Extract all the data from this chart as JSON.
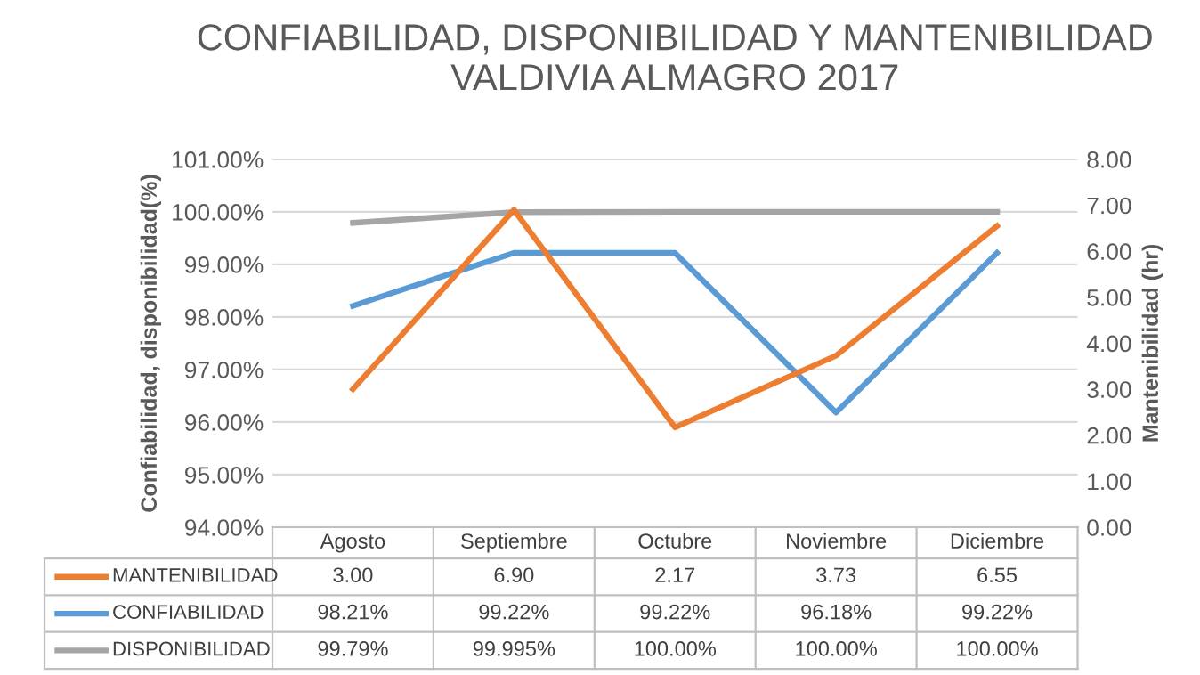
{
  "chart_data": {
    "type": "line",
    "title": "CONFIABILIDAD, DISPONIBILIDAD Y MANTENIBILIDAD\nVALDIVIA ALMAGRO 2017",
    "ylabel": "Confiabilidad, disponibilidad(%)",
    "y2label": "Mantenibilidad (hr)",
    "categories": [
      "Agosto",
      "Septiembre",
      "Octubre",
      "Noviembre",
      "Diciembre"
    ],
    "series": [
      {
        "name": "MANTENIBILIDAD",
        "color": "#ed7d31",
        "axis": "y2",
        "values": [
          3.0,
          6.9,
          2.17,
          3.73,
          6.55
        ],
        "value_labels": [
          "3.00",
          "6.90",
          "2.17",
          "3.73",
          "6.55"
        ]
      },
      {
        "name": "CONFIABILIDAD",
        "color": "#5b9bd5",
        "values": [
          98.21,
          99.22,
          99.22,
          96.18,
          99.22
        ],
        "value_labels": [
          "98.21%",
          "99.22%",
          "99.22%",
          "96.18%",
          "99.22%"
        ]
      },
      {
        "name": "DISPONIBILIDAD",
        "color": "#a5a5a5",
        "values": [
          99.79,
          99.995,
          100.0,
          100.0,
          100.0
        ],
        "value_labels": [
          "99.79%",
          "99.995%",
          "100.00%",
          "100.00%",
          "100.00%"
        ]
      }
    ],
    "ylim": [
      94,
      101
    ],
    "yticks": [
      {
        "value": 94,
        "label": "94.00%"
      },
      {
        "value": 95,
        "label": "95.00%"
      },
      {
        "value": 96,
        "label": "96.00%"
      },
      {
        "value": 97,
        "label": "97.00%"
      },
      {
        "value": 98,
        "label": "98.00%"
      },
      {
        "value": 99,
        "label": "99.00%"
      },
      {
        "value": 100,
        "label": "100.00%"
      },
      {
        "value": 101,
        "label": "101.00%"
      }
    ],
    "y2lim": [
      0,
      8
    ],
    "y2ticks": [
      {
        "value": 0,
        "label": "0.00"
      },
      {
        "value": 1,
        "label": "1.00"
      },
      {
        "value": 2,
        "label": "2.00"
      },
      {
        "value": 3,
        "label": "3.00"
      },
      {
        "value": 4,
        "label": "4.00"
      },
      {
        "value": 5,
        "label": "5.00"
      },
      {
        "value": 6,
        "label": "6.00"
      },
      {
        "value": 7,
        "label": "7.00"
      },
      {
        "value": 8,
        "label": "8.00"
      }
    ],
    "grid": "y",
    "legend": "bottom"
  }
}
